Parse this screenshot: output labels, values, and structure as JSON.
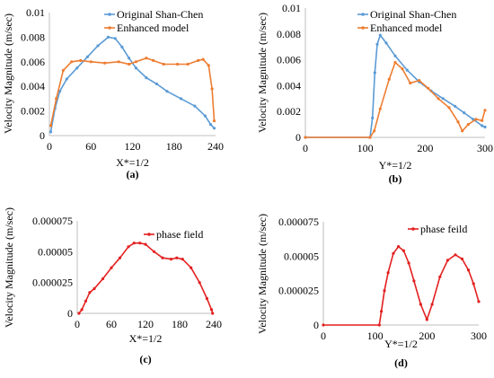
{
  "colors": {
    "shan_chen": "#5b9bd5",
    "enhanced": "#ed7d31",
    "phase": "#e32020"
  },
  "chart_data": [
    {
      "type": "scatter",
      "panel_label": "(a)",
      "xlabel": "X*=1/2",
      "ylabel": "Velocity Magnitude (m/sec)",
      "xlim": [
        0,
        240
      ],
      "ylim": [
        0,
        0.01
      ],
      "xticks": [
        0,
        60,
        120,
        180,
        240
      ],
      "yticks": [
        0,
        0.002,
        0.004,
        0.006,
        0.008,
        0.01
      ],
      "ytick_labels": [
        "0",
        "0.002",
        "0.004",
        "0.006",
        "0.008",
        "0.01"
      ],
      "legend": "top-right",
      "series": [
        {
          "name": "Original Shan-Chen",
          "color_key": "shan_chen",
          "points": [
            [
              2,
              0.0003
            ],
            [
              8,
              0.0022
            ],
            [
              15,
              0.0036
            ],
            [
              25,
              0.0046
            ],
            [
              40,
              0.0055
            ],
            [
              55,
              0.0064
            ],
            [
              70,
              0.0073
            ],
            [
              85,
              0.008
            ],
            [
              95,
              0.0079
            ],
            [
              105,
              0.0072
            ],
            [
              115,
              0.0063
            ],
            [
              125,
              0.0055
            ],
            [
              140,
              0.0047
            ],
            [
              155,
              0.0042
            ],
            [
              170,
              0.0036
            ],
            [
              190,
              0.003
            ],
            [
              210,
              0.0024
            ],
            [
              225,
              0.0016
            ],
            [
              233,
              0.0009
            ],
            [
              238,
              0.0006
            ]
          ]
        },
        {
          "name": "Enhanced model",
          "color_key": "enhanced",
          "points": [
            [
              2,
              0.0008
            ],
            [
              10,
              0.003
            ],
            [
              20,
              0.0053
            ],
            [
              32,
              0.006
            ],
            [
              45,
              0.0061
            ],
            [
              60,
              0.006
            ],
            [
              80,
              0.0059
            ],
            [
              100,
              0.006
            ],
            [
              115,
              0.0058
            ],
            [
              125,
              0.006
            ],
            [
              140,
              0.0063
            ],
            [
              150,
              0.0061
            ],
            [
              165,
              0.0058
            ],
            [
              185,
              0.0058
            ],
            [
              200,
              0.0058
            ],
            [
              215,
              0.0061
            ],
            [
              222,
              0.0062
            ],
            [
              230,
              0.0057
            ],
            [
              235,
              0.0038
            ],
            [
              238,
              0.0012
            ]
          ]
        }
      ]
    },
    {
      "type": "scatter",
      "panel_label": "(b)",
      "xlabel": "Y*=1/2",
      "ylabel": "Velocity Magnitude (m/sec)",
      "xlim": [
        0,
        300
      ],
      "ylim": [
        0,
        0.01
      ],
      "xticks": [
        0,
        100,
        200,
        300
      ],
      "yticks": [
        0,
        0.002,
        0.004,
        0.006,
        0.008,
        0.01
      ],
      "ytick_labels": [
        "0",
        "0.002",
        "0.004",
        "0.006",
        "0.008",
        "0.01"
      ],
      "legend": "top-right",
      "series": [
        {
          "name": "Original Shan-Chen",
          "color_key": "shan_chen",
          "points": [
            [
              0,
              0
            ],
            [
              108,
              0
            ],
            [
              112,
              0.0015
            ],
            [
              116,
              0.005
            ],
            [
              120,
              0.0072
            ],
            [
              125,
              0.0079
            ],
            [
              135,
              0.0073
            ],
            [
              150,
              0.0063
            ],
            [
              170,
              0.0052
            ],
            [
              190,
              0.0043
            ],
            [
              210,
              0.0036
            ],
            [
              230,
              0.003
            ],
            [
              250,
              0.0024
            ],
            [
              265,
              0.0019
            ],
            [
              280,
              0.0014
            ],
            [
              295,
              0.0009
            ],
            [
              300,
              0.0008
            ]
          ]
        },
        {
          "name": "Enhanced model",
          "color_key": "enhanced",
          "points": [
            [
              0,
              0
            ],
            [
              108,
              0
            ],
            [
              115,
              0.0005
            ],
            [
              125,
              0.0022
            ],
            [
              140,
              0.0045
            ],
            [
              150,
              0.0058
            ],
            [
              162,
              0.0053
            ],
            [
              175,
              0.0042
            ],
            [
              190,
              0.0044
            ],
            [
              205,
              0.0038
            ],
            [
              222,
              0.003
            ],
            [
              240,
              0.0023
            ],
            [
              255,
              0.0012
            ],
            [
              262,
              0.0005
            ],
            [
              272,
              0.001
            ],
            [
              285,
              0.0014
            ],
            [
              295,
              0.0013
            ],
            [
              300,
              0.0021
            ]
          ]
        }
      ]
    },
    {
      "type": "scatter",
      "panel_label": "(c)",
      "xlabel": "X*=1/2",
      "ylabel": "Velocity Magnitude (m/sec)",
      "xlim": [
        0,
        240
      ],
      "ylim": [
        0,
        7.5e-05
      ],
      "xticks": [
        0,
        60,
        120,
        180,
        240
      ],
      "yticks": [
        0,
        2.5e-05,
        5e-05,
        7.5e-05
      ],
      "ytick_labels": [
        "0",
        "0.000025",
        "0.00005",
        "0.000075"
      ],
      "legend": "top-right",
      "series": [
        {
          "name": "phase field",
          "color_key": "phase",
          "points": [
            [
              3,
              0
            ],
            [
              8,
              3e-06
            ],
            [
              15,
              1e-05
            ],
            [
              22,
              1.7e-05
            ],
            [
              30,
              2e-05
            ],
            [
              45,
              2.8e-05
            ],
            [
              60,
              3.7e-05
            ],
            [
              75,
              4.5e-05
            ],
            [
              90,
              5.4e-05
            ],
            [
              100,
              5.7e-05
            ],
            [
              110,
              5.7e-05
            ],
            [
              120,
              5.6e-05
            ],
            [
              135,
              5e-05
            ],
            [
              150,
              4.5e-05
            ],
            [
              165,
              4.4e-05
            ],
            [
              175,
              4.5e-05
            ],
            [
              185,
              4.4e-05
            ],
            [
              200,
              3.7e-05
            ],
            [
              215,
              2.5e-05
            ],
            [
              228,
              1.2e-05
            ],
            [
              236,
              3e-06
            ],
            [
              238,
              0
            ]
          ]
        }
      ]
    },
    {
      "type": "scatter",
      "panel_label": "(d)",
      "xlabel": "Y*=1/2",
      "ylabel": "Velocity Magnitude (m/sec)",
      "xlim": [
        0,
        300
      ],
      "ylim": [
        0,
        7.5e-05
      ],
      "xticks": [
        0,
        100,
        200,
        300
      ],
      "yticks": [
        0,
        2.5e-05,
        5e-05,
        7.5e-05
      ],
      "ytick_labels": [
        "0",
        "0.000025",
        "0.00005",
        "0.000075"
      ],
      "legend": "top-right",
      "series": [
        {
          "name": "phase feild",
          "color_key": "phase",
          "points": [
            [
              0,
              0
            ],
            [
              108,
              0
            ],
            [
              112,
              1e-05
            ],
            [
              118,
              2.5e-05
            ],
            [
              125,
              3.8e-05
            ],
            [
              135,
              5.2e-05
            ],
            [
              145,
              5.7e-05
            ],
            [
              155,
              5.4e-05
            ],
            [
              165,
              4.5e-05
            ],
            [
              175,
              3.2e-05
            ],
            [
              188,
              1.5e-05
            ],
            [
              200,
              4e-06
            ],
            [
              210,
              1.5e-05
            ],
            [
              225,
              3.5e-05
            ],
            [
              240,
              4.7e-05
            ],
            [
              255,
              5.1e-05
            ],
            [
              268,
              4.8e-05
            ],
            [
              280,
              4e-05
            ],
            [
              290,
              3e-05
            ],
            [
              300,
              1.7e-05
            ]
          ]
        }
      ]
    }
  ]
}
